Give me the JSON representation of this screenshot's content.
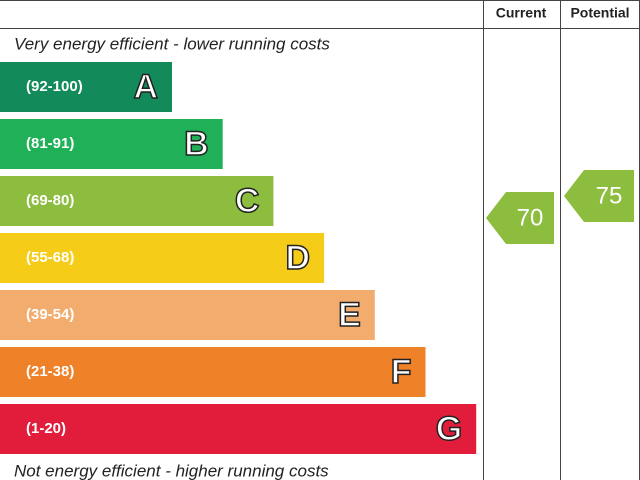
{
  "header": {
    "current": "Current",
    "potential": "Potential"
  },
  "top_label": "Very energy efficient - lower running costs",
  "bottom_label": "Not energy efficient - higher running costs",
  "bands": [
    {
      "range": "(92-100)",
      "letter": "A",
      "color": "#138a5a"
    },
    {
      "range": "(81-91)",
      "letter": "B",
      "color": "#1fb058"
    },
    {
      "range": "(69-80)",
      "letter": "C",
      "color": "#8cbd3f"
    },
    {
      "range": "(55-68)",
      "letter": "D",
      "color": "#f5cc17"
    },
    {
      "range": "(39-54)",
      "letter": "E",
      "color": "#f2ad6e"
    },
    {
      "range": "(21-38)",
      "letter": "F",
      "color": "#ef8128"
    },
    {
      "range": "(1-20)",
      "letter": "G",
      "color": "#e21d3c"
    }
  ],
  "current": {
    "value": 70,
    "color": "#8cbd3f"
  },
  "potential": {
    "value": 75,
    "color": "#8cbd3f"
  }
}
